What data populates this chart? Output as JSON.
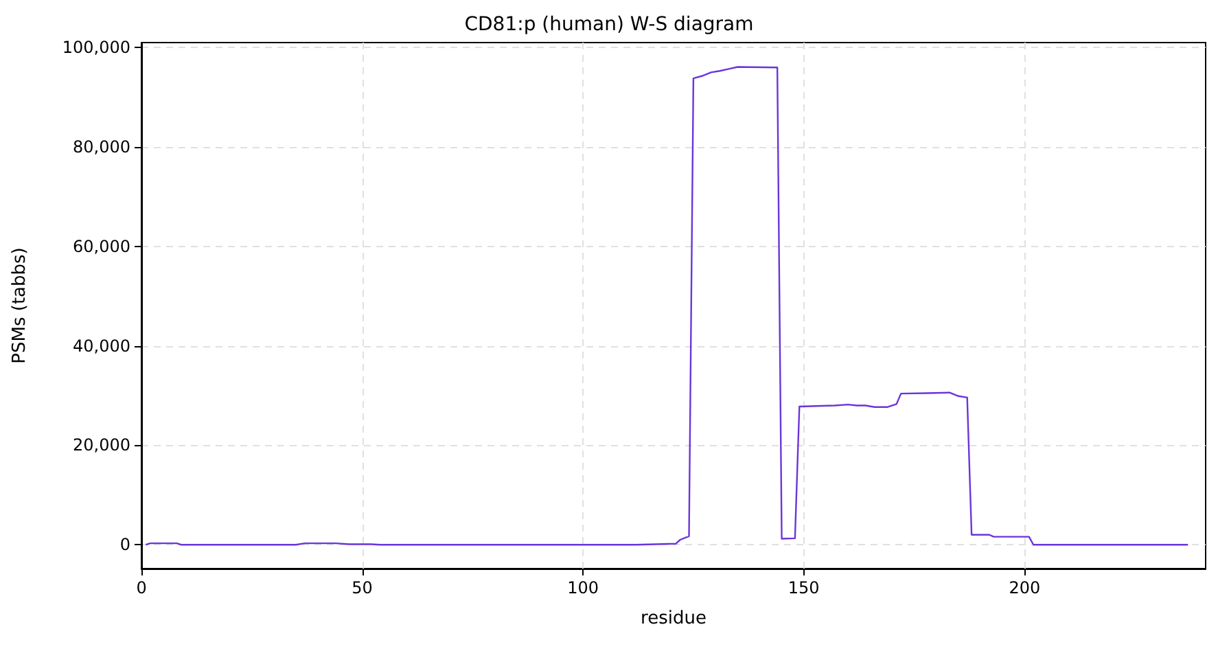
{
  "chart_data": {
    "type": "line",
    "title": "CD81:p (human) W-S diagram",
    "xlabel": "residue",
    "ylabel": "PSMs (tabbs)",
    "x": [
      1,
      2,
      8,
      9,
      35,
      37,
      44,
      47,
      52,
      54,
      112,
      121,
      122,
      124,
      125,
      127,
      129,
      131,
      133,
      135,
      144,
      145,
      148,
      149,
      157,
      160,
      162,
      164,
      166,
      169,
      171,
      172,
      178,
      183,
      185,
      187,
      188,
      192,
      193,
      201,
      202,
      237
    ],
    "series": [
      {
        "color": "#6a35d9",
        "values": [
          0,
          300,
          300,
          0,
          0,
          300,
          300,
          100,
          100,
          0,
          0,
          200,
          1000,
          1700,
          93800,
          94300,
          95000,
          95300,
          95700,
          96100,
          96000,
          1200,
          1300,
          27800,
          28000,
          28200,
          28000,
          28000,
          27700,
          27700,
          28300,
          30400,
          30500,
          30600,
          29900,
          29600,
          2000,
          2000,
          1600,
          1600,
          0,
          0
        ]
      }
    ],
    "xlim": [
      0,
      241
    ],
    "ylim": [
      -4800,
      101000
    ],
    "xticks": [
      0,
      50,
      100,
      150,
      200
    ],
    "yticks": [
      {
        "value": 0,
        "label": "0"
      },
      {
        "value": 20000,
        "label": "20,000"
      },
      {
        "value": 40000,
        "label": "40,000"
      },
      {
        "value": 60000,
        "label": "60,000"
      },
      {
        "value": 80000,
        "label": "80,000"
      },
      {
        "value": 100000,
        "label": "100,000"
      }
    ],
    "grid": true,
    "marker": "none",
    "line_style": "solid"
  }
}
